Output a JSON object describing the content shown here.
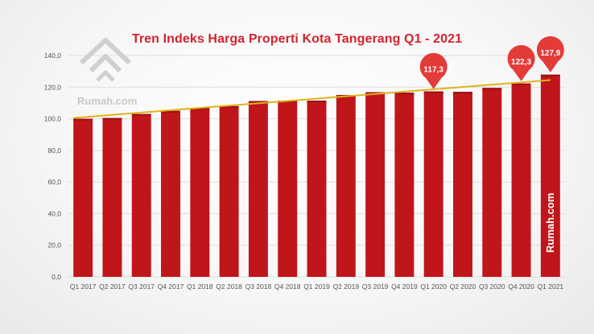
{
  "colors": {
    "bar": "#c0161b",
    "bar_dark": "#9c0f13",
    "trend": "#e0b21b",
    "title": "#d3232e",
    "callout": "#e33b37",
    "grid": "#dddddd"
  },
  "watermark": {
    "text": "Rumah.com",
    "icon": "house-roof-logo-icon"
  },
  "vertical_logo": {
    "text": "Rumah.com"
  },
  "chart_data": {
    "type": "bar",
    "title": "Tren Indeks Harga Properti Kota Tangerang Q1 - 2021",
    "xlabel": "",
    "ylabel": "",
    "ylim": [
      0,
      140
    ],
    "yticks": [
      "0,0",
      "20,0",
      "40,0",
      "60,0",
      "80,0",
      "100,0",
      "120,0",
      "140,0"
    ],
    "ytick_values": [
      0,
      20,
      40,
      60,
      80,
      100,
      120,
      140
    ],
    "grid": true,
    "legend": "none",
    "categories": [
      "Q1 2017",
      "Q2 2017",
      "Q3 2017",
      "Q4 2017",
      "Q1 2018",
      "Q2 2018",
      "Q3 2018",
      "Q4 2018",
      "Q1 2019",
      "Q2 2019",
      "Q3 2019",
      "Q4 2019",
      "Q1 2020",
      "Q2 2020",
      "Q3 2020",
      "Q4 2020",
      "Q1 2021"
    ],
    "values": [
      100.0,
      100.5,
      103.0,
      105.0,
      106.8,
      108.0,
      111.2,
      111.5,
      111.5,
      115.0,
      116.8,
      116.5,
      117.3,
      117.0,
      119.5,
      122.3,
      127.9
    ],
    "trendline": {
      "start": 100.5,
      "end": 124.5
    },
    "callouts": [
      {
        "index": 12,
        "label": "117,3"
      },
      {
        "index": 15,
        "label": "122,3"
      },
      {
        "index": 16,
        "label": "127,9"
      }
    ]
  }
}
